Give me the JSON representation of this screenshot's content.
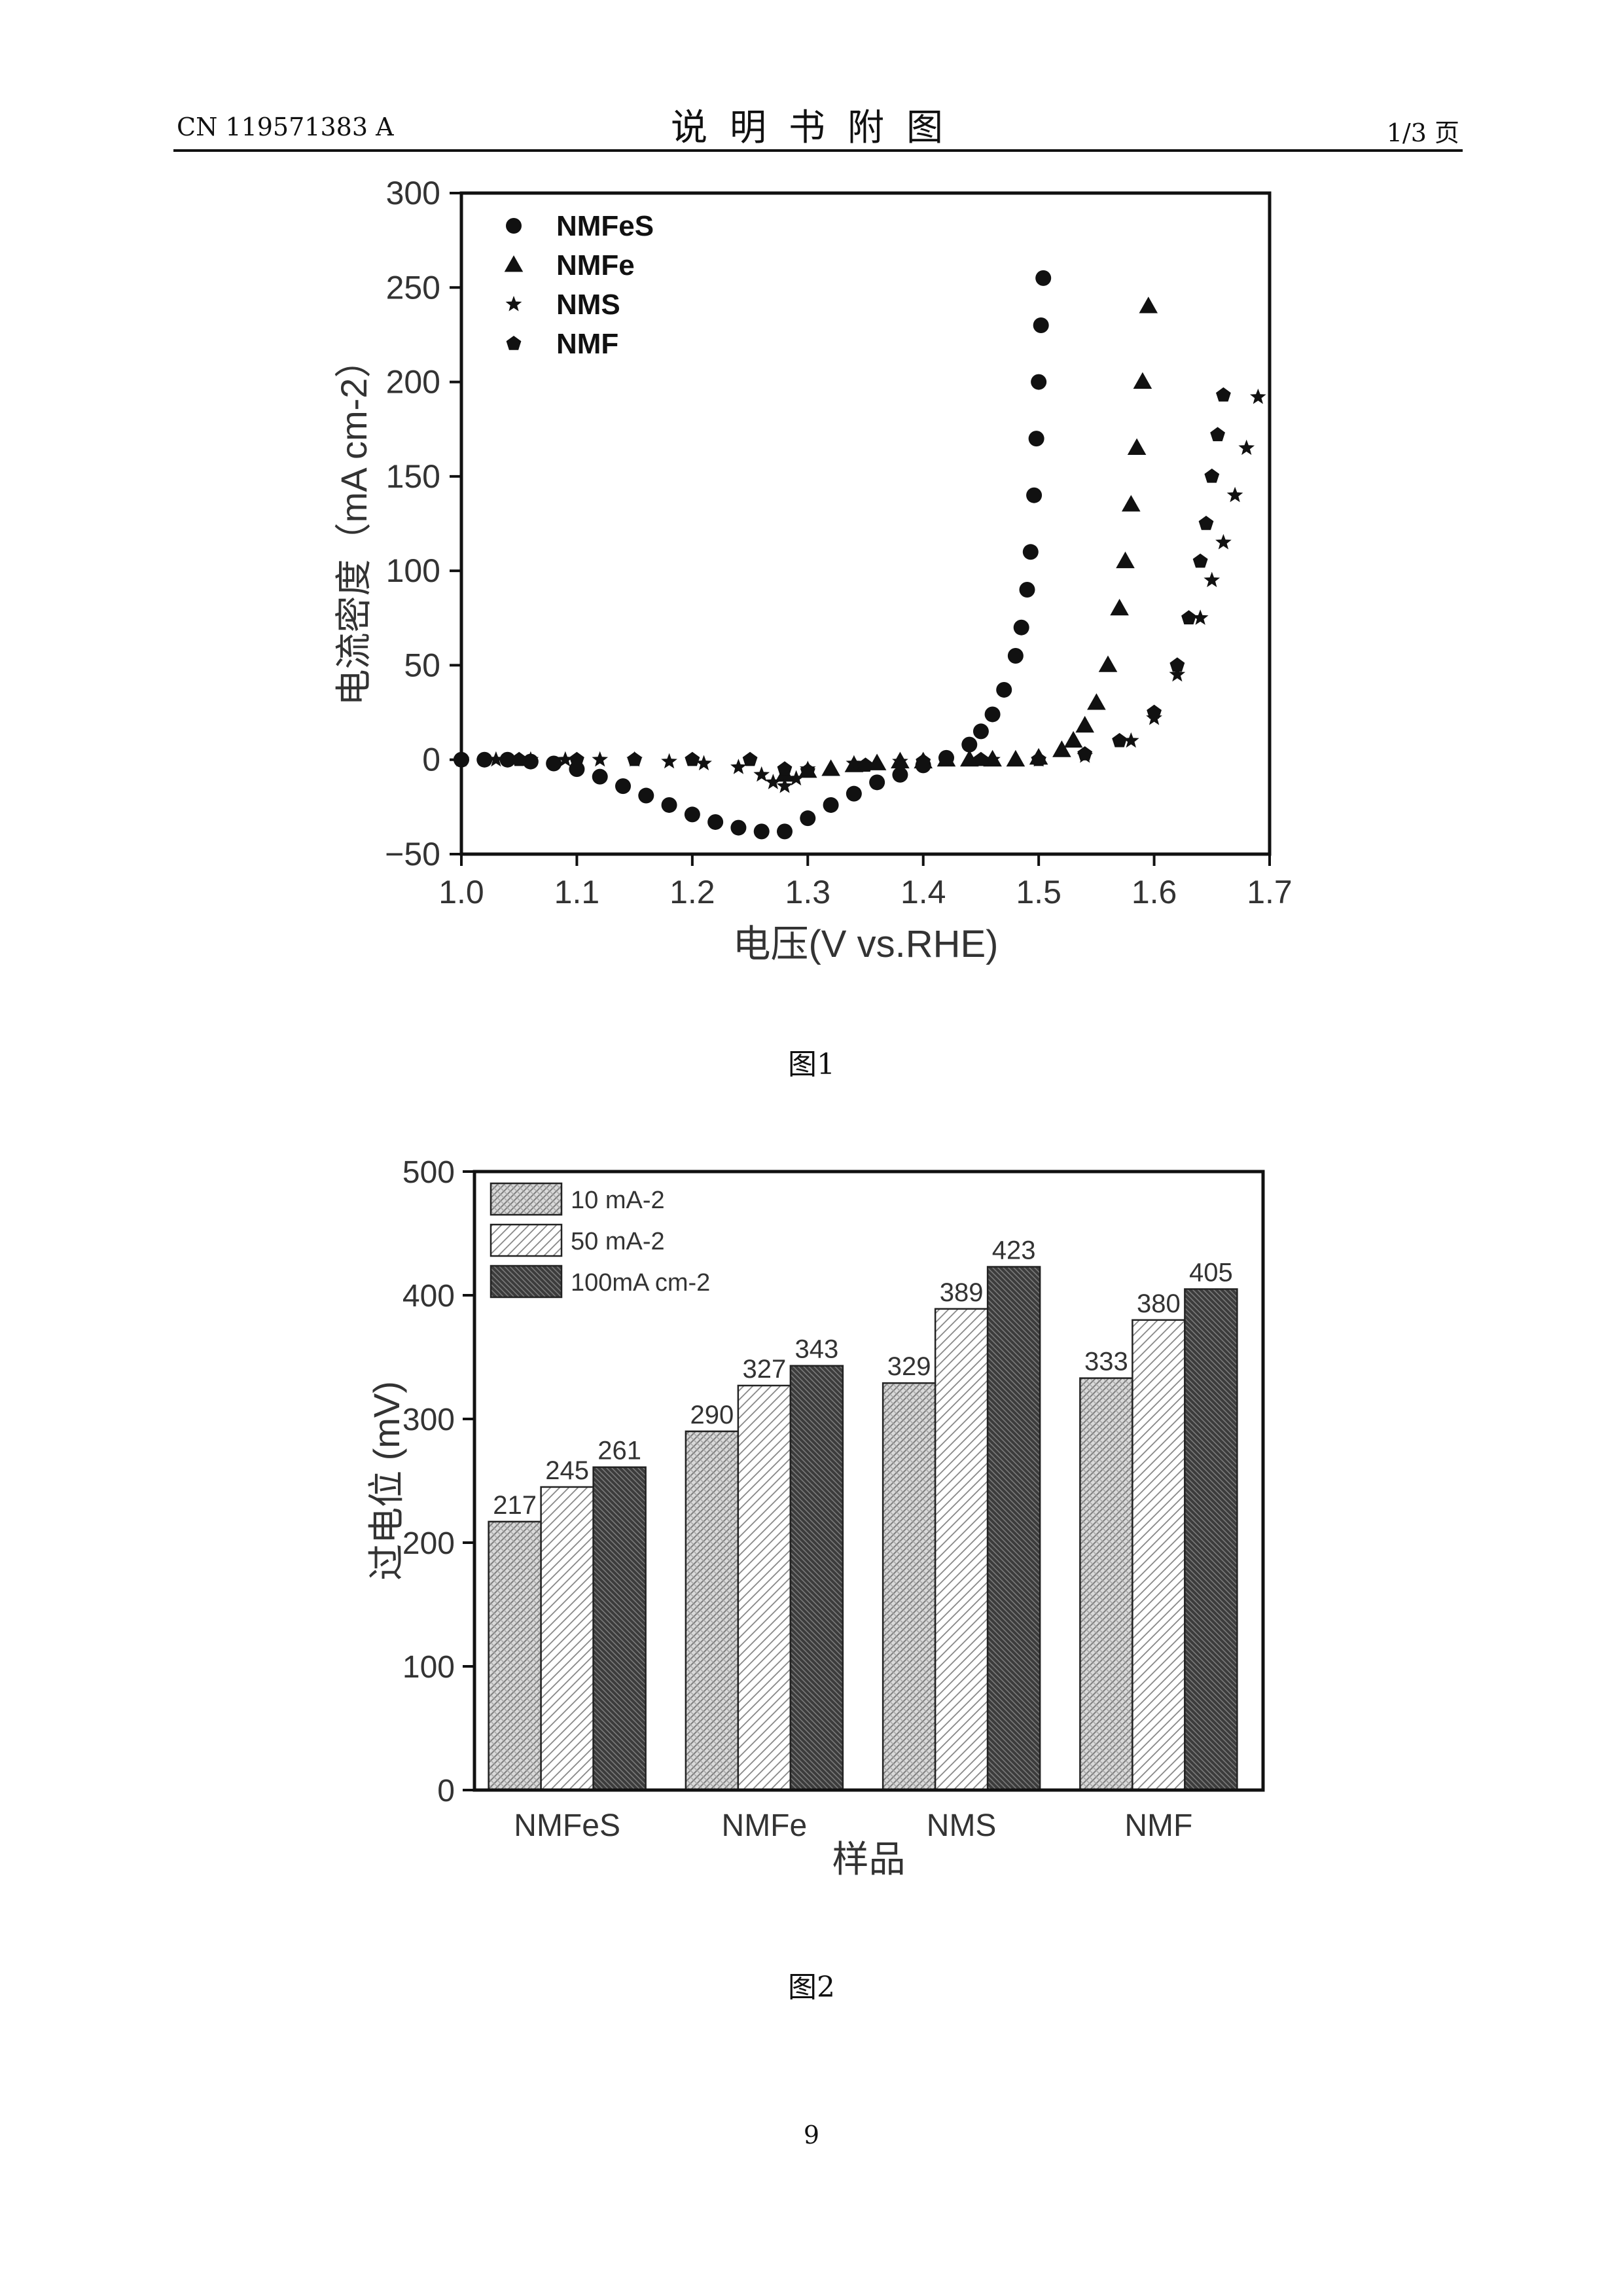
{
  "header": {
    "left": "CN 119571383 A",
    "title": "说明书附图",
    "right": "1/3 页"
  },
  "figure1": {
    "caption": "图1",
    "chart_data": {
      "type": "scatter",
      "xlabel": "电压(V vs.RHE)",
      "ylabel": "电流密度（mA cm-2）",
      "xlim": [
        1.0,
        1.7
      ],
      "ylim": [
        -50,
        300
      ],
      "xticks": [
        "1.0",
        "1.1",
        "1.2",
        "1.3",
        "1.4",
        "1.5",
        "1.6",
        "1.7"
      ],
      "yticks": [
        "300",
        "250",
        "200",
        "150",
        "100",
        "50",
        "0",
        "−50"
      ],
      "legend_position": "top-left",
      "series": [
        {
          "name": "NMFeS",
          "marker": "circle",
          "x": [
            1.0,
            1.02,
            1.04,
            1.06,
            1.08,
            1.1,
            1.12,
            1.14,
            1.16,
            1.18,
            1.2,
            1.22,
            1.24,
            1.26,
            1.28,
            1.3,
            1.32,
            1.34,
            1.36,
            1.38,
            1.4,
            1.42,
            1.44,
            1.45,
            1.46,
            1.47,
            1.48,
            1.485,
            1.49,
            1.493,
            1.496,
            1.498,
            1.5,
            1.502,
            1.504
          ],
          "y": [
            0,
            0,
            0,
            -1,
            -2,
            -5,
            -9,
            -14,
            -19,
            -24,
            -29,
            -33,
            -36,
            -38,
            -38,
            -31,
            -24,
            -18,
            -12,
            -8,
            -3,
            1,
            8,
            15,
            24,
            37,
            55,
            70,
            90,
            110,
            140,
            170,
            200,
            230,
            255
          ]
        },
        {
          "name": "NMFe",
          "marker": "triangle",
          "x": [
            1.28,
            1.3,
            1.32,
            1.34,
            1.36,
            1.38,
            1.4,
            1.42,
            1.44,
            1.46,
            1.48,
            1.5,
            1.52,
            1.53,
            1.54,
            1.55,
            1.56,
            1.57,
            1.575,
            1.58,
            1.585,
            1.59,
            1.595
          ],
          "y": [
            -8,
            -6,
            -5,
            -3,
            -2,
            -1,
            -1,
            0,
            0,
            0,
            0,
            1,
            5,
            10,
            18,
            30,
            50,
            80,
            105,
            135,
            165,
            200,
            240
          ]
        },
        {
          "name": "NMS",
          "marker": "star",
          "x": [
            1.0,
            1.03,
            1.06,
            1.09,
            1.12,
            1.15,
            1.18,
            1.21,
            1.24,
            1.26,
            1.27,
            1.28,
            1.29,
            1.3,
            1.34,
            1.38,
            1.42,
            1.46,
            1.5,
            1.54,
            1.58,
            1.6,
            1.62,
            1.64,
            1.65,
            1.66,
            1.67,
            1.68,
            1.69
          ],
          "y": [
            0,
            0,
            0,
            0,
            0,
            0,
            -1,
            -2,
            -4,
            -8,
            -12,
            -14,
            -10,
            -5,
            -2,
            -1,
            0,
            0,
            0,
            2,
            10,
            22,
            45,
            75,
            95,
            115,
            140,
            165,
            192
          ]
        },
        {
          "name": "NMF",
          "marker": "pentagon",
          "x": [
            1.0,
            1.05,
            1.1,
            1.15,
            1.2,
            1.25,
            1.28,
            1.3,
            1.35,
            1.4,
            1.45,
            1.5,
            1.54,
            1.57,
            1.6,
            1.62,
            1.63,
            1.64,
            1.645,
            1.65,
            1.655,
            1.66
          ],
          "y": [
            0,
            0,
            0,
            0,
            0,
            0,
            -5,
            -6,
            -3,
            -1,
            0,
            0,
            3,
            10,
            25,
            50,
            75,
            105,
            125,
            150,
            172,
            193
          ]
        }
      ]
    }
  },
  "figure2": {
    "caption": "图2",
    "chart_data": {
      "type": "bar",
      "xlabel": "样品",
      "ylabel": "过电位 (mV)",
      "ylim": [
        0,
        500
      ],
      "yticks": [
        "0",
        "100",
        "200",
        "300",
        "400",
        "500"
      ],
      "categories": [
        "NMFeS",
        "NMFe",
        "NMS",
        "NMF"
      ],
      "legend_position": "top-left",
      "series": [
        {
          "name": "10 mA-2",
          "values": [
            217,
            290,
            329,
            333
          ]
        },
        {
          "name": "50 mA-2",
          "values": [
            245,
            327,
            389,
            380
          ]
        },
        {
          "name": "100mA cm-2",
          "values": [
            261,
            343,
            423,
            405
          ]
        }
      ],
      "data_labels": [
        "217",
        "245",
        "261",
        "290",
        "327",
        "343",
        "329",
        "389",
        "423",
        "333",
        "380",
        "405"
      ]
    }
  },
  "page_number": "9"
}
